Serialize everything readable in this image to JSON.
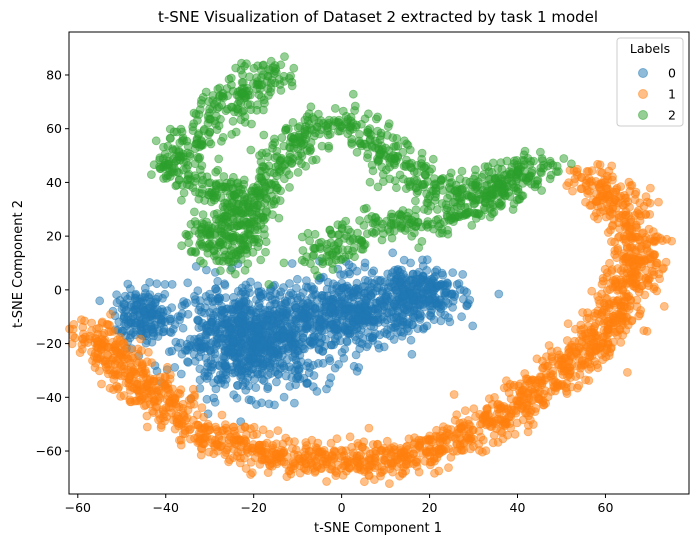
{
  "chart_data": {
    "type": "scatter",
    "title": "t-SNE Visualization of Dataset 2 extracted by task 1 model",
    "xlabel": "t-SNE Component 1",
    "ylabel": "t-SNE Component 2",
    "xlim": [
      -62,
      79
    ],
    "ylim": [
      -76,
      96
    ],
    "xticks": [
      -60,
      -40,
      -20,
      0,
      20,
      40,
      60
    ],
    "yticks": [
      -60,
      -40,
      -20,
      0,
      20,
      40,
      60,
      80
    ],
    "grid": false,
    "legend": {
      "title": "Labels",
      "placement": "top-right",
      "entries": [
        "0",
        "1",
        "2"
      ]
    },
    "marker_alpha": 0.5,
    "series": [
      {
        "name": "0",
        "color": "#1f77b4",
        "clusters": [
          {
            "center": [
              -20,
              -18
            ],
            "spread": [
              16,
              17
            ],
            "count": 900
          },
          {
            "center": [
              3,
              -8
            ],
            "spread": [
              13,
              12
            ],
            "count": 420
          },
          {
            "center": [
              18,
              -2
            ],
            "spread": [
              9,
              10
            ],
            "count": 260
          },
          {
            "center": [
              -45,
              -10
            ],
            "spread": [
              6,
              9
            ],
            "count": 170
          }
        ]
      },
      {
        "name": "1",
        "color": "#ff7f0e",
        "path": [
          [
            -57,
            -15
          ],
          [
            -50,
            -28
          ],
          [
            -42,
            -40
          ],
          [
            -35,
            -50
          ],
          [
            -25,
            -57
          ],
          [
            -15,
            -62
          ],
          [
            -5,
            -63
          ],
          [
            5,
            -64
          ],
          [
            15,
            -63
          ],
          [
            25,
            -57
          ],
          [
            35,
            -48
          ],
          [
            45,
            -37
          ],
          [
            55,
            -25
          ],
          [
            62,
            -10
          ],
          [
            66,
            5
          ],
          [
            67,
            18
          ],
          [
            64,
            30
          ],
          [
            58,
            40
          ],
          [
            55,
            42
          ]
        ],
        "path_width": 6,
        "count": 1700
      },
      {
        "name": "2",
        "color": "#2ca02c",
        "path": [
          [
            -15,
            82
          ],
          [
            -20,
            75
          ],
          [
            -28,
            65
          ],
          [
            -34,
            55
          ],
          [
            -38,
            45
          ],
          [
            -30,
            40
          ],
          [
            -22,
            30
          ],
          [
            -32,
            20
          ],
          [
            -25,
            12
          ],
          [
            -18,
            40
          ],
          [
            -10,
            55
          ],
          [
            -2,
            65
          ],
          [
            5,
            60
          ],
          [
            10,
            52
          ],
          [
            15,
            42
          ],
          [
            22,
            36
          ],
          [
            30,
            38
          ],
          [
            38,
            42
          ],
          [
            45,
            48
          ],
          [
            40,
            40
          ],
          [
            30,
            30
          ],
          [
            20,
            25
          ],
          [
            10,
            25
          ],
          [
            0,
            20
          ],
          [
            -5,
            10
          ]
        ],
        "path_width": 6,
        "count": 1400
      }
    ]
  }
}
